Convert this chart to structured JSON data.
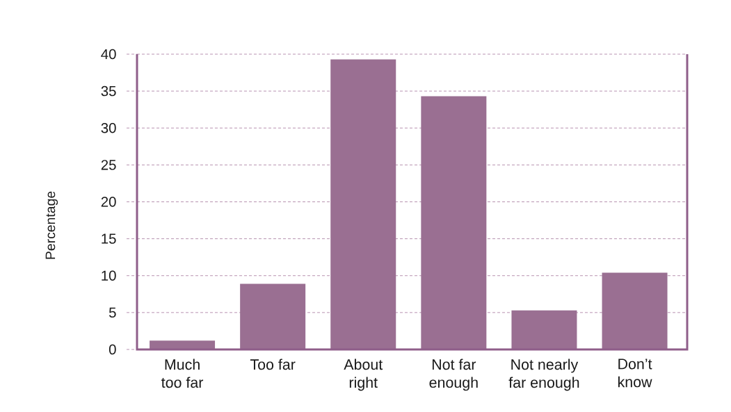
{
  "chart_data": {
    "type": "bar",
    "ylabel": "Percentage",
    "categories": [
      "Much\ntoo far",
      "Too far",
      "About\nright",
      "Not far\nenough",
      "Not nearly\nfar enough",
      "Don’t\nknow"
    ],
    "values": [
      1.2,
      8.9,
      39.3,
      34.3,
      5.3,
      10.4
    ],
    "color": "#9a6f92",
    "ylim": [
      0,
      40
    ],
    "yticks": [
      0,
      5,
      10,
      15,
      20,
      25,
      30,
      35,
      40
    ],
    "grid": "y"
  }
}
